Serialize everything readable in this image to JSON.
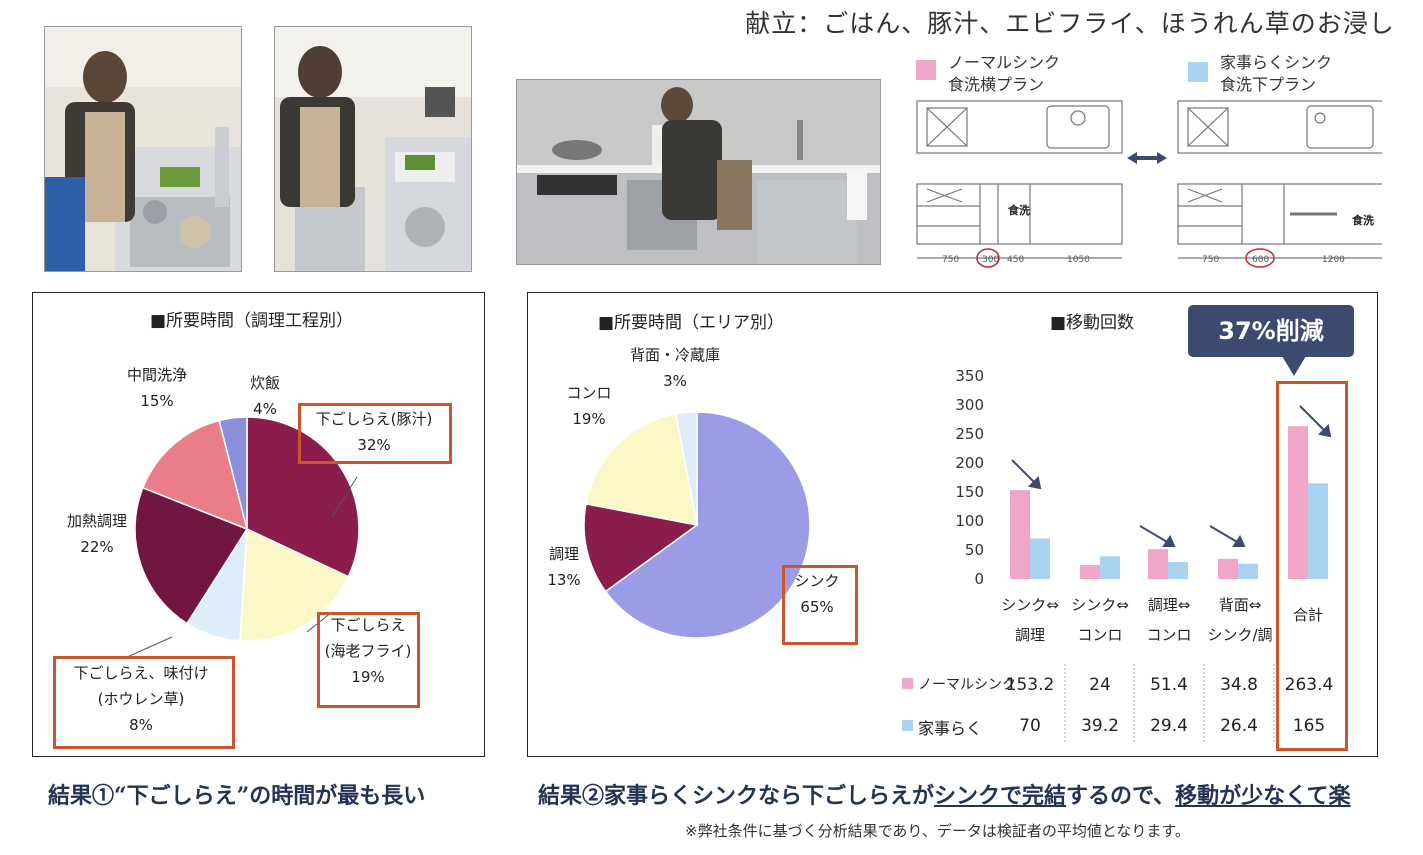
{
  "menu_title": "献立：ごはん、豚汁、エビフライ、ほうれん草のお浸し",
  "plans": {
    "normal": {
      "line1": "ノーマルシンク",
      "line2": "食洗横プラン",
      "color": "#f0a6c8"
    },
    "easy": {
      "line1": "家事らくシンク",
      "line2": "食洗下プラン",
      "color": "#a9d3f0"
    },
    "dishwasher_label": "食洗",
    "normal_dims": [
      "750",
      "300",
      "450",
      "1050"
    ],
    "easy_dims": [
      "750",
      "600",
      "1200"
    ]
  },
  "colors": {
    "normal": "#f0a6c8",
    "easy": "#a9d3f0",
    "highlight": "#c8572f",
    "callout": "#3d4a6f",
    "result_text": "#223355"
  },
  "pie1": {
    "title": "■所要時間（調理工程別）",
    "labels": [
      {
        "name": "下ごしらえ(豚汁)",
        "pct": "32%"
      },
      {
        "name": "下ごしらえ",
        "name2": "(海老フライ)",
        "pct": "19%"
      },
      {
        "name": "下ごしらえ、味付け",
        "name2": "(ホウレン草)",
        "pct": "8%"
      },
      {
        "name": "加熱調理",
        "pct": "22%"
      },
      {
        "name": "中間洗浄",
        "pct": "15%"
      },
      {
        "name": "炊飯",
        "pct": "4%"
      }
    ]
  },
  "pie2": {
    "title": "■所要時間（エリア別）",
    "labels": [
      {
        "name": "シンク",
        "pct": "65%"
      },
      {
        "name": "調理",
        "pct": "13%"
      },
      {
        "name": "コンロ",
        "pct": "19%"
      },
      {
        "name": "背面・冷蔵庫",
        "pct": "3%"
      }
    ]
  },
  "bar": {
    "title": "■移動回数",
    "callout": "37%削減",
    "row_labels": {
      "normal": "ノーマルシンク",
      "easy": "家事らく"
    },
    "cat_lines": [
      [
        "シンク⇔",
        "調理"
      ],
      [
        "シンク⇔",
        "コンロ"
      ],
      [
        "調理⇔",
        "コンロ"
      ],
      [
        "背面⇔",
        "シンク/調"
      ],
      [
        "合計",
        ""
      ]
    ],
    "table_normal": [
      "153.2",
      "24",
      "51.4",
      "34.8",
      "263.4"
    ],
    "table_easy": [
      "70",
      "39.2",
      "29.4",
      "26.4",
      "165"
    ],
    "yticks": [
      "350",
      "300",
      "250",
      "200",
      "150",
      "100",
      "50",
      "0"
    ]
  },
  "chart_data": [
    {
      "type": "pie",
      "title": "■所要時間（調理工程別）",
      "slices": [
        {
          "label": "下ごしらえ(豚汁)",
          "value": 32,
          "color": "#8b1d4d"
        },
        {
          "label": "下ごしらえ(海老フライ)",
          "value": 19,
          "color": "#fbf7c7"
        },
        {
          "label": "下ごしらえ、味付け(ホウレン草)",
          "value": 8,
          "color": "#ddeef8"
        },
        {
          "label": "加熱調理",
          "value": 22,
          "color": "#701640"
        },
        {
          "label": "中間洗浄",
          "value": 15,
          "color": "#ea7d87"
        },
        {
          "label": "炊飯",
          "value": 4,
          "color": "#8a8fd9"
        }
      ]
    },
    {
      "type": "pie",
      "title": "■所要時間（エリア別）",
      "slices": [
        {
          "label": "シンク",
          "value": 65,
          "color": "#9a9ce6"
        },
        {
          "label": "調理",
          "value": 13,
          "color": "#8b1d4d"
        },
        {
          "label": "コンロ",
          "value": 19,
          "color": "#fbf7c7"
        },
        {
          "label": "背面・冷蔵庫",
          "value": 3,
          "color": "#ddeef8"
        }
      ]
    },
    {
      "type": "bar",
      "title": "■移動回数",
      "categories": [
        "シンク⇔調理",
        "シンク⇔コンロ",
        "調理⇔コンロ",
        "背面⇔シンク/調",
        "合計"
      ],
      "series": [
        {
          "name": "ノーマルシンク",
          "values": [
            153.2,
            24,
            51.4,
            34.8,
            263.4
          ],
          "color": "#f0a6c8"
        },
        {
          "name": "家事らく",
          "values": [
            70,
            39.2,
            29.4,
            26.4,
            165
          ],
          "color": "#a9d3f0"
        }
      ],
      "ylim": [
        0,
        350
      ],
      "grid": false
    }
  ],
  "results": {
    "r1": "結果①“下ごしらえ”の時間が最も長い",
    "r2_a": "結果②家事らくシンクなら下ごしらえが",
    "r2_b": "シンクで完結",
    "r2_c": "するので、",
    "r2_d": "移動が少なくて楽"
  },
  "note": "※弊社条件に基づく分析結果であり、データは検証者の平均値となります。"
}
